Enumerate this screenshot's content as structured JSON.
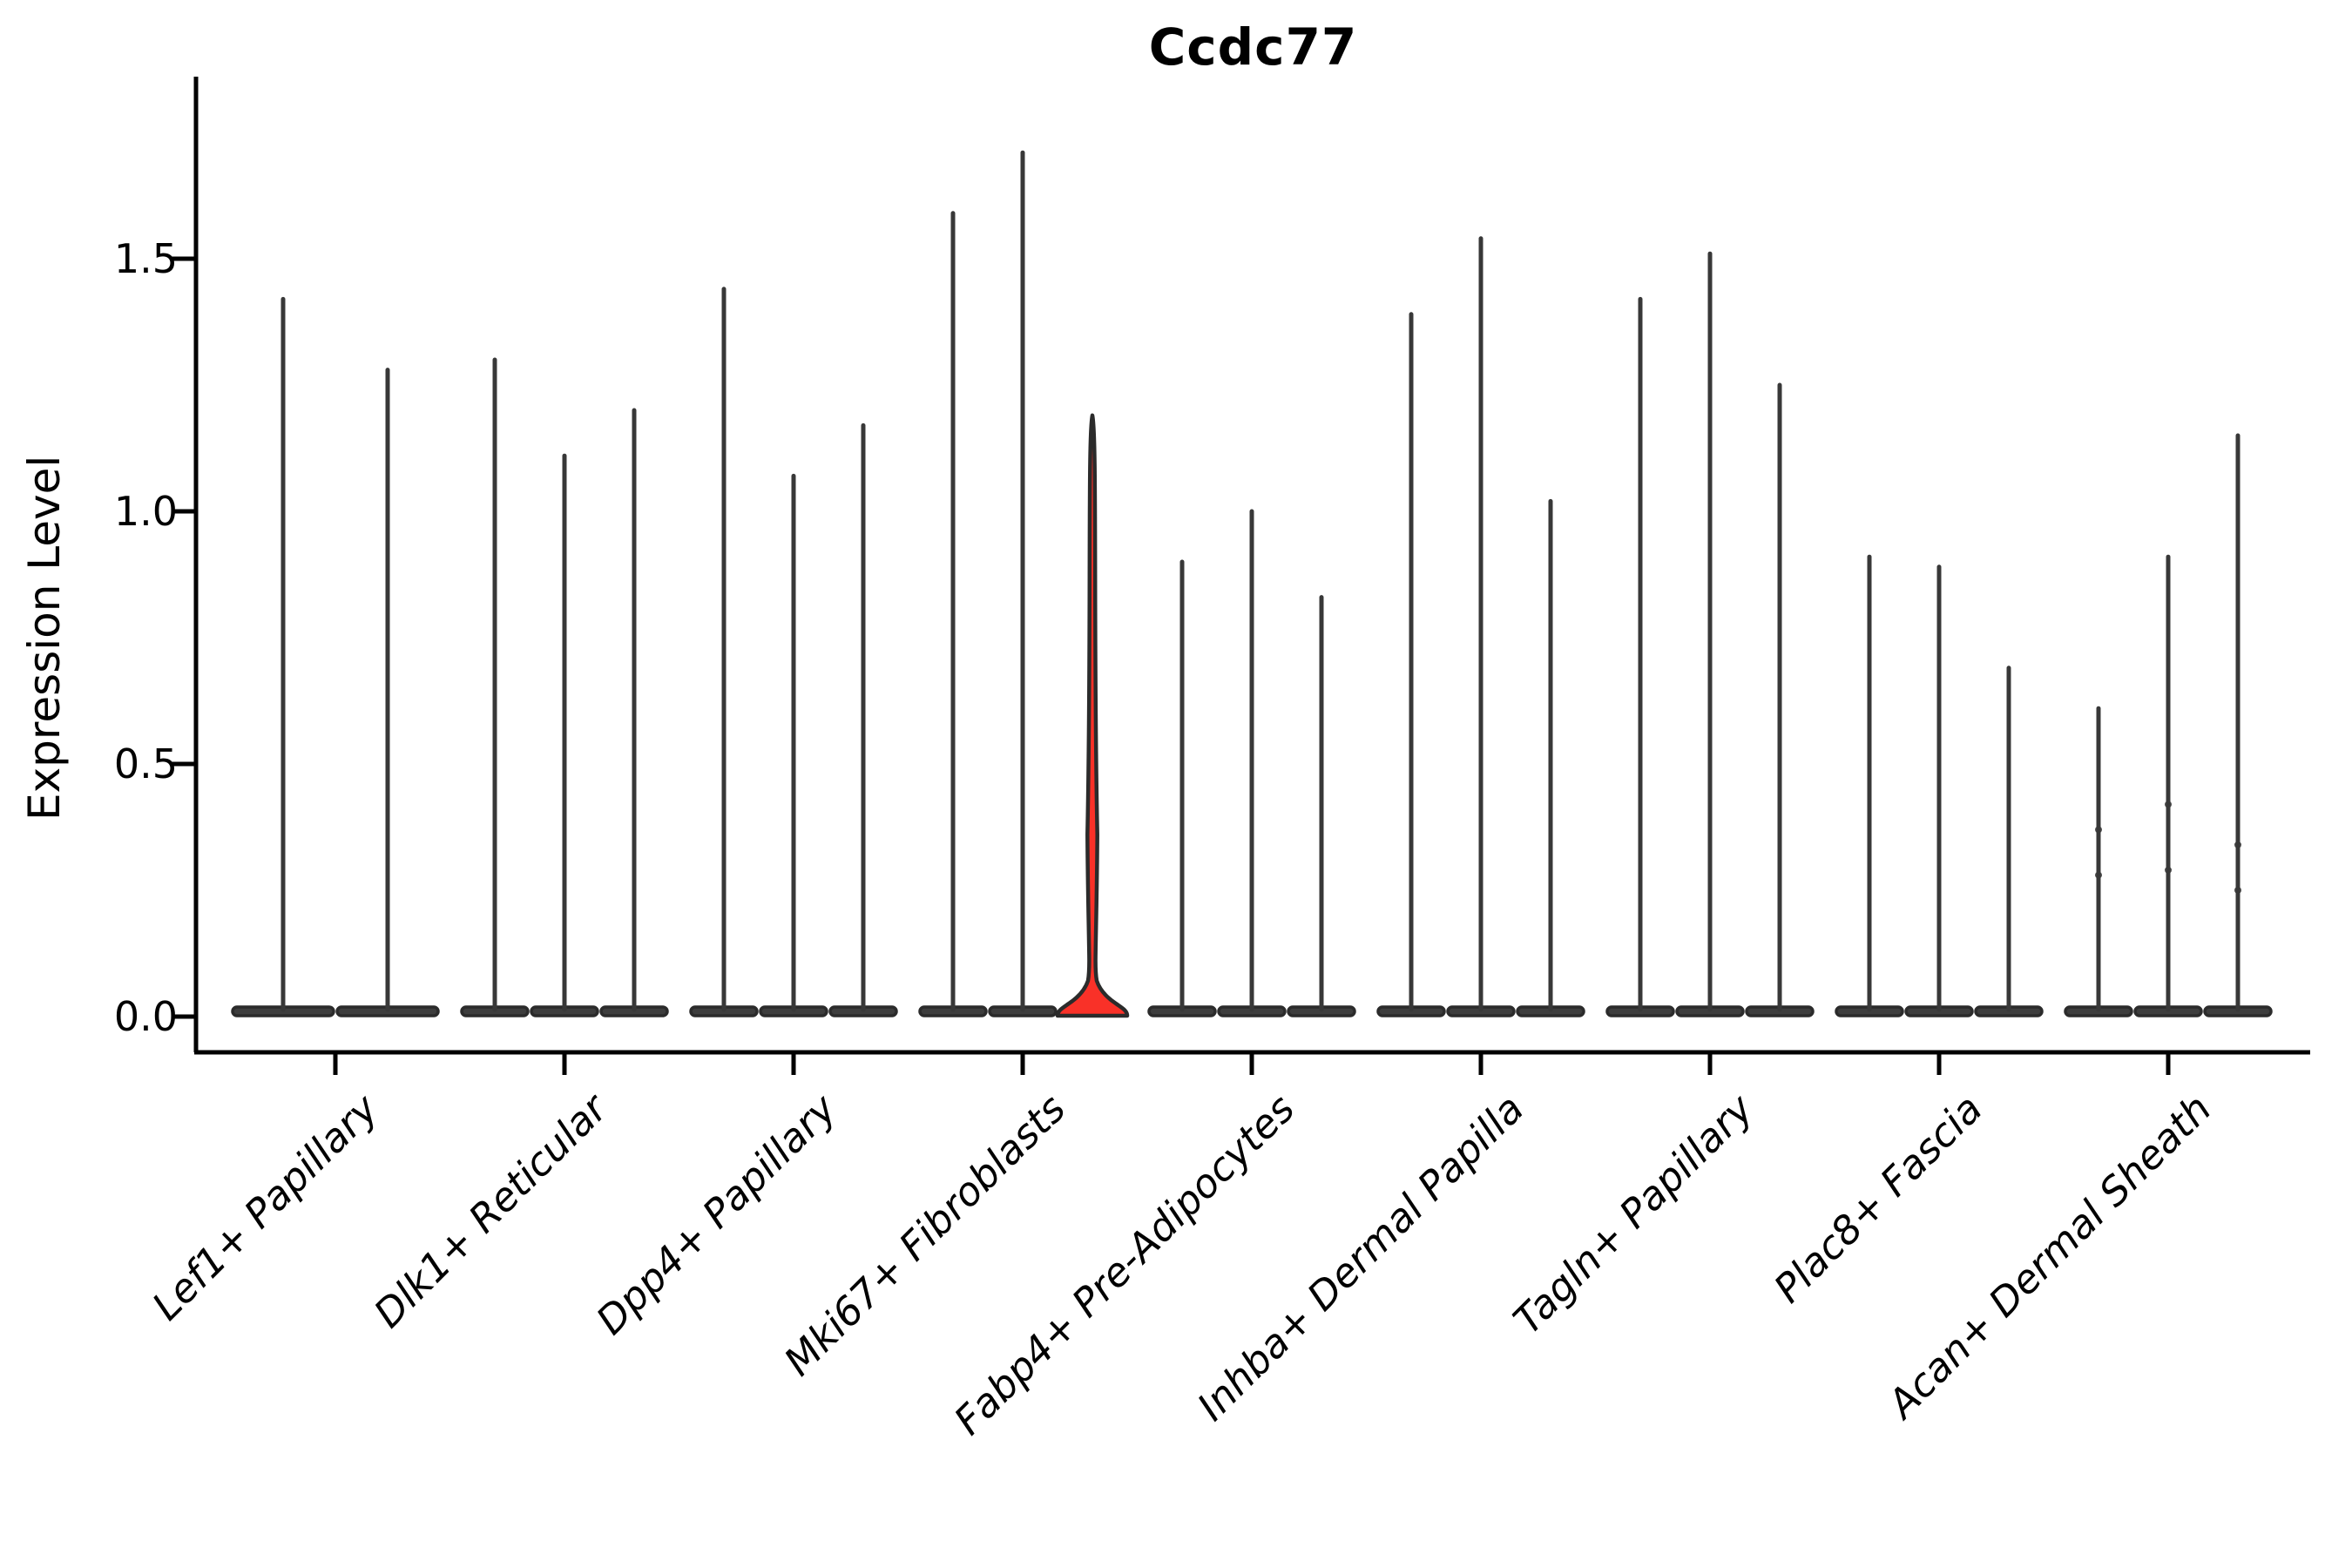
{
  "chart_data": {
    "type": "violin",
    "title": "Ccdc77",
    "ylabel": "Expression Level",
    "xlabel": "",
    "yticks": [
      {
        "label": "0.0",
        "value": 0.0
      },
      {
        "label": "0.5",
        "value": 0.5
      },
      {
        "label": "1.0",
        "value": 1.0
      },
      {
        "label": "1.5",
        "value": 1.5
      }
    ],
    "ylim": [
      -0.04,
      1.86
    ],
    "grid": false,
    "legend": "none",
    "x_label_rotation_deg": 45,
    "groups": [
      {
        "category": "Lef1+ Papillary",
        "violins": [
          {
            "max": 1.42
          },
          {
            "max": 1.28
          }
        ]
      },
      {
        "category": "Dlk1+ Reticular",
        "violins": [
          {
            "max": 1.3
          },
          {
            "max": 1.11
          },
          {
            "max": 1.2
          }
        ]
      },
      {
        "category": "Dpp4+ Papillary",
        "violins": [
          {
            "max": 1.44
          },
          {
            "max": 1.07
          },
          {
            "max": 1.17
          }
        ]
      },
      {
        "category": "Mki67+ Fibroblasts",
        "violins": [
          {
            "max": 1.59
          },
          {
            "max": 1.71
          },
          {
            "max": 1.19,
            "highlight": true
          }
        ]
      },
      {
        "category": "Fabp4+ Pre-Adipocytes",
        "violins": [
          {
            "max": 0.9
          },
          {
            "max": 1.0
          },
          {
            "max": 0.83
          }
        ]
      },
      {
        "category": "Inhba+ Dermal Papilla",
        "violins": [
          {
            "max": 1.39
          },
          {
            "max": 1.54
          },
          {
            "max": 1.02
          }
        ]
      },
      {
        "category": "Tagln+ Papillary",
        "violins": [
          {
            "max": 1.42
          },
          {
            "max": 1.51
          },
          {
            "max": 1.25
          }
        ]
      },
      {
        "category": "Plac8+ Fascia",
        "violins": [
          {
            "max": 0.91
          },
          {
            "max": 0.89
          },
          {
            "max": 0.69
          }
        ]
      },
      {
        "category": "Acan+ Dermal Sheath",
        "violins": [
          {
            "max": 0.61
          },
          {
            "max": 0.91
          },
          {
            "max": 1.15
          }
        ]
      }
    ],
    "highlight": {
      "group": "Mki67+ Fibroblasts",
      "violin_index": 2,
      "max": 1.19,
      "bulge_value_range": [
        0.1,
        0.62
      ],
      "bulge_peak_value": 0.36,
      "base_value": 0.08
    },
    "jitter_points": [
      {
        "group_index": 8,
        "violin_index": 0,
        "value": 0.37
      },
      {
        "group_index": 8,
        "violin_index": 0,
        "value": 0.28
      },
      {
        "group_index": 8,
        "violin_index": 1,
        "value": 0.42
      },
      {
        "group_index": 8,
        "violin_index": 1,
        "value": 0.29
      },
      {
        "group_index": 8,
        "violin_index": 2,
        "value": 0.34
      },
      {
        "group_index": 8,
        "violin_index": 2,
        "value": 0.25
      }
    ],
    "colors": {
      "violin_fill": "#3d3d3d",
      "violin_stroke": "#2b2b2b",
      "stem": "#383838",
      "highlight_fill": "#f93128",
      "axis": "#000000",
      "text": "#000000",
      "background": "#ffffff"
    }
  }
}
